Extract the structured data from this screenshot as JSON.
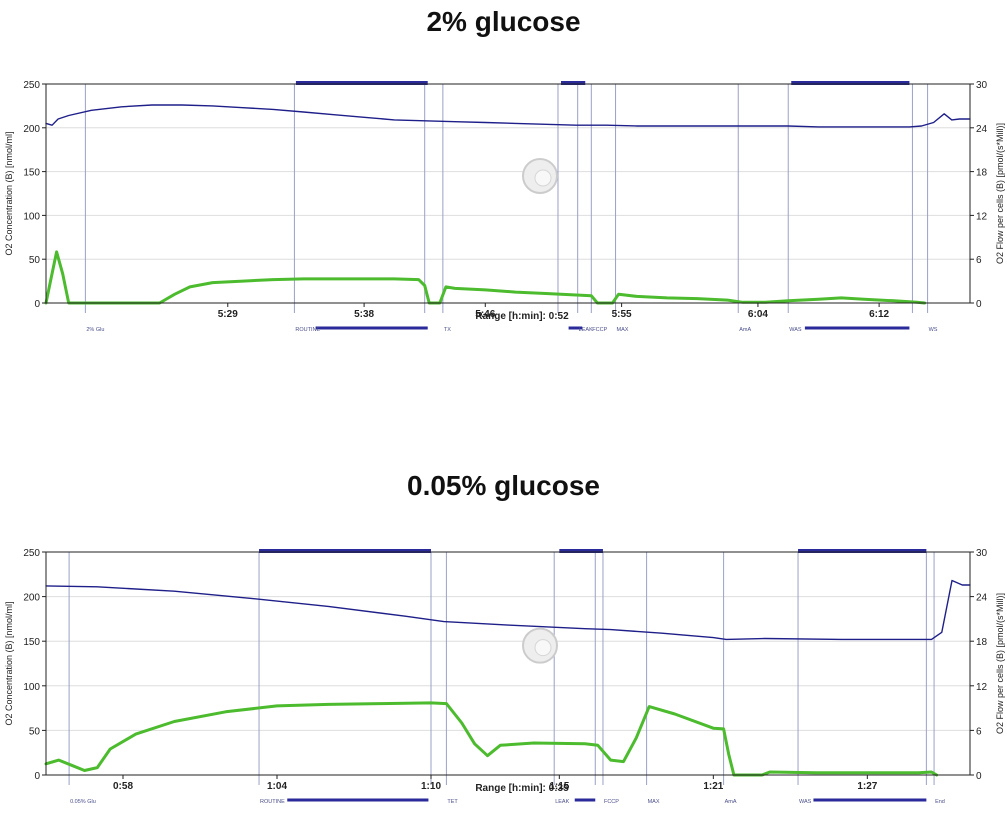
{
  "titles": [
    "2% glucose",
    "0.05% glucose"
  ],
  "chart_data": [
    {
      "type": "line",
      "title": "2% glucose",
      "ylabel_left": "O2 Concentration (B) [nmol/ml]",
      "ylabel_right": "O2 Flow per cells (B) [pmol/(s*Mill)]",
      "range_label": "Range [h:min]: 0:52",
      "left_ticks": [
        "250",
        "200",
        "150",
        "100",
        "50",
        "0"
      ],
      "right_ticks": [
        "30",
        "24",
        "18",
        "12",
        "6",
        "0"
      ],
      "ylim_left": [
        0,
        250
      ],
      "ylim_right": [
        0,
        30
      ],
      "xlim_min": [
        317,
        378
      ],
      "x_ticks": [
        {
          "t": 329,
          "label": "5:29"
        },
        {
          "t": 338,
          "label": "5:38"
        },
        {
          "t": 346,
          "label": "5:46"
        },
        {
          "t": 355,
          "label": "5:55"
        },
        {
          "t": 364,
          "label": "6:04"
        },
        {
          "t": 372,
          "label": "6:12"
        }
      ],
      "event_markers": [
        {
          "t": 319.6,
          "label": "2% Glu"
        },
        {
          "t": 333.4,
          "label": "ROUTINE"
        },
        {
          "t": 342.0,
          "label": ""
        },
        {
          "t": 343.2,
          "label": "TX"
        },
        {
          "t": 350.8,
          "label": ""
        },
        {
          "t": 352.1,
          "label": "LEAK"
        },
        {
          "t": 353.0,
          "label": "FCCP"
        },
        {
          "t": 354.6,
          "label": "MAX"
        },
        {
          "t": 362.7,
          "label": "AmA"
        },
        {
          "t": 366.0,
          "label": "WAS"
        },
        {
          "t": 374.2,
          "label": ""
        },
        {
          "t": 375.2,
          "label": "WS"
        }
      ],
      "top_bars": [
        [
          333.5,
          342.2
        ],
        [
          351.0,
          352.6
        ],
        [
          366.2,
          374.0
        ]
      ],
      "bottom_bars": [
        [
          334.8,
          342.2
        ],
        [
          351.5,
          352.4
        ],
        [
          367.1,
          374.0
        ]
      ],
      "series": [
        {
          "name": "O2 Concentration (B)",
          "axis": "left",
          "color": "#1f1f8a",
          "points": [
            [
              317.0,
              205
            ],
            [
              317.4,
              203
            ],
            [
              317.8,
              210
            ],
            [
              318.5,
              214
            ],
            [
              320,
              220
            ],
            [
              322,
              224
            ],
            [
              324,
              226
            ],
            [
              326,
              226
            ],
            [
              328,
              225
            ],
            [
              330,
              223
            ],
            [
              332,
              221
            ],
            [
              334,
              218
            ],
            [
              336,
              215
            ],
            [
              338,
              212
            ],
            [
              340,
              209
            ],
            [
              342,
              208
            ],
            [
              344,
              207
            ],
            [
              346,
              206
            ],
            [
              348,
              205
            ],
            [
              350,
              204
            ],
            [
              352,
              203
            ],
            [
              354,
              203
            ],
            [
              356,
              202
            ],
            [
              358,
              202
            ],
            [
              360,
              202
            ],
            [
              362,
              202
            ],
            [
              364,
              202
            ],
            [
              366,
              202
            ],
            [
              368,
              201
            ],
            [
              370,
              201
            ],
            [
              372,
              201
            ],
            [
              374,
              201
            ],
            [
              374.8,
              202
            ],
            [
              375.6,
              206
            ],
            [
              376.3,
              216
            ],
            [
              376.8,
              209
            ],
            [
              377.3,
              210
            ],
            [
              378,
              210
            ]
          ]
        },
        {
          "name": "O2 Flow per cells (B)",
          "axis": "right",
          "color": "#4cbb2e",
          "points": [
            [
              317.0,
              0
            ],
            [
              317.3,
              3
            ],
            [
              317.7,
              7
            ],
            [
              318.1,
              4
            ],
            [
              318.5,
              0
            ],
            [
              324.5,
              0
            ],
            [
              325.5,
              1.2
            ],
            [
              326.5,
              2.2
            ],
            [
              328,
              2.8
            ],
            [
              330,
              3.0
            ],
            [
              332,
              3.2
            ],
            [
              334,
              3.3
            ],
            [
              336,
              3.3
            ],
            [
              338,
              3.3
            ],
            [
              340,
              3.3
            ],
            [
              341.6,
              3.2
            ],
            [
              342.0,
              2.4
            ],
            [
              342.3,
              0
            ],
            [
              343.0,
              0
            ],
            [
              343.4,
              2.2
            ],
            [
              344,
              2.0
            ],
            [
              346,
              1.8
            ],
            [
              348,
              1.5
            ],
            [
              350,
              1.3
            ],
            [
              352,
              1.1
            ],
            [
              353.0,
              1.0
            ],
            [
              353.4,
              0
            ],
            [
              354.4,
              0
            ],
            [
              354.8,
              1.2
            ],
            [
              356,
              0.9
            ],
            [
              358,
              0.7
            ],
            [
              360,
              0.6
            ],
            [
              362,
              0.4
            ],
            [
              363,
              0.1
            ],
            [
              364.5,
              0.1
            ],
            [
              366,
              0.3
            ],
            [
              368,
              0.5
            ],
            [
              369.5,
              0.7
            ],
            [
              371,
              0.5
            ],
            [
              373,
              0.3
            ],
            [
              374.5,
              0.1
            ],
            [
              375.0,
              0
            ]
          ]
        }
      ]
    },
    {
      "type": "line",
      "title": "0.05% glucose",
      "ylabel_left": "O2 Concentration (B) [nmol/ml]",
      "ylabel_right": "O2 Flow per cells (B) [pmol/(s*Mill)]",
      "range_label": "Range [h:min]: 0:35",
      "left_ticks": [
        "250",
        "200",
        "150",
        "100",
        "50",
        "0"
      ],
      "right_ticks": [
        "30",
        "24",
        "18",
        "12",
        "6",
        "0"
      ],
      "ylim_left": [
        0,
        250
      ],
      "ylim_right": [
        0,
        30
      ],
      "xlim_min": [
        55,
        91
      ],
      "x_ticks": [
        {
          "t": 58,
          "label": "0:58"
        },
        {
          "t": 64,
          "label": "1:04"
        },
        {
          "t": 70,
          "label": "1:10"
        },
        {
          "t": 75,
          "label": "1:15"
        },
        {
          "t": 81,
          "label": "1:21"
        },
        {
          "t": 87,
          "label": "1:27"
        }
      ],
      "event_markers": [
        {
          "t": 55.9,
          "label": "0.05% Glu"
        },
        {
          "t": 63.3,
          "label": "ROUTINE"
        },
        {
          "t": 70.0,
          "label": ""
        },
        {
          "t": 70.6,
          "label": "TET"
        },
        {
          "t": 74.8,
          "label": "LEAK"
        },
        {
          "t": 76.4,
          "label": ""
        },
        {
          "t": 76.7,
          "label": "FCCP"
        },
        {
          "t": 78.4,
          "label": "MAX"
        },
        {
          "t": 81.4,
          "label": "AmA"
        },
        {
          "t": 84.3,
          "label": "WAS"
        },
        {
          "t": 89.3,
          "label": ""
        },
        {
          "t": 89.6,
          "label": "End"
        }
      ],
      "top_bars": [
        [
          63.3,
          70.0
        ],
        [
          75.0,
          76.7
        ],
        [
          84.3,
          89.3
        ]
      ],
      "bottom_bars": [
        [
          64.4,
          69.9
        ],
        [
          75.6,
          76.4
        ],
        [
          84.9,
          89.3
        ]
      ],
      "series": [
        {
          "name": "O2 Concentration (B)",
          "axis": "left",
          "color": "#1f1f8a",
          "points": [
            [
              55,
              212
            ],
            [
              57,
              211
            ],
            [
              60,
              206
            ],
            [
              63,
              198
            ],
            [
              66,
              189
            ],
            [
              69,
              178
            ],
            [
              70.5,
              172
            ],
            [
              73,
              168
            ],
            [
              76,
              164
            ],
            [
              77,
              163
            ],
            [
              79,
              159
            ],
            [
              81,
              154
            ],
            [
              81.5,
              152
            ],
            [
              83,
              153
            ],
            [
              86,
              152
            ],
            [
              89.5,
              152
            ],
            [
              89.9,
              160
            ],
            [
              90.3,
              218
            ],
            [
              90.7,
              213
            ],
            [
              91,
              213
            ]
          ]
        },
        {
          "name": "O2 Flow per cells (B)",
          "axis": "right",
          "color": "#4cbb2e",
          "points": [
            [
              55,
              1.5
            ],
            [
              55.5,
              2.0
            ],
            [
              56,
              1.3
            ],
            [
              56.5,
              0.6
            ],
            [
              57,
              1.0
            ],
            [
              57.5,
              3.5
            ],
            [
              58.5,
              5.5
            ],
            [
              60,
              7.2
            ],
            [
              62,
              8.5
            ],
            [
              64,
              9.3
            ],
            [
              66,
              9.5
            ],
            [
              68,
              9.6
            ],
            [
              70,
              9.7
            ],
            [
              70.6,
              9.6
            ],
            [
              71.2,
              7.0
            ],
            [
              71.7,
              4.2
            ],
            [
              72.2,
              2.6
            ],
            [
              72.7,
              4.0
            ],
            [
              74,
              4.3
            ],
            [
              76,
              4.2
            ],
            [
              76.5,
              4.0
            ],
            [
              77.0,
              2.0
            ],
            [
              77.5,
              1.8
            ],
            [
              78.0,
              5.0
            ],
            [
              78.5,
              9.2
            ],
            [
              79.5,
              8.2
            ],
            [
              81,
              6.3
            ],
            [
              81.4,
              6.2
            ],
            [
              81.6,
              2.8
            ],
            [
              81.8,
              0
            ],
            [
              82.9,
              0
            ],
            [
              83.2,
              0.4
            ],
            [
              85,
              0.3
            ],
            [
              87,
              0.3
            ],
            [
              89,
              0.3
            ],
            [
              89.5,
              0.4
            ],
            [
              89.7,
              0
            ]
          ]
        }
      ]
    }
  ]
}
